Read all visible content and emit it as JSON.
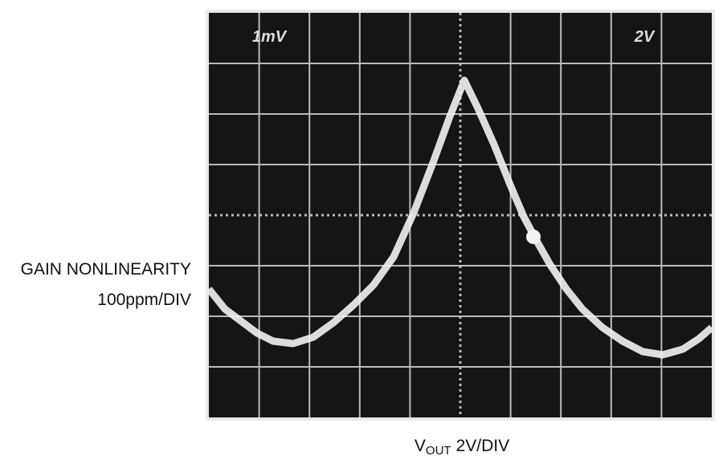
{
  "screen": {
    "left_label": "1mV",
    "right_label": "2V"
  },
  "y_axis_label": {
    "line1": "GAIN NONLINEARITY",
    "line2": "100ppm/DIV"
  },
  "x_axis_label": {
    "symbol": "V",
    "subscript": "OUT",
    "scale": "2V/DIV"
  }
}
